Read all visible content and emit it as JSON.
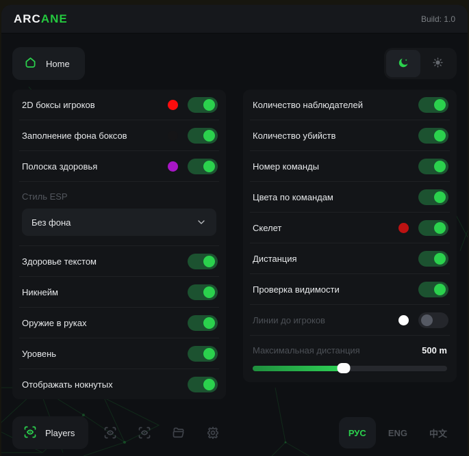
{
  "header": {
    "logo_white": "ARC",
    "logo_green": "ANE",
    "build": "Build: 1.0"
  },
  "nav": {
    "home_label": "Home"
  },
  "columns": {
    "left": [
      {
        "type": "toggle",
        "label": "2D боксы игроков",
        "color": "#fb0d0d",
        "on": true
      },
      {
        "type": "toggle",
        "label": "Заполнение фона боксов",
        "color": "#151517",
        "on": true
      },
      {
        "type": "toggle",
        "label": "Полоска здоровья",
        "color": "#a816c6",
        "on": true
      },
      {
        "type": "select",
        "label": "Стиль ESP",
        "value": "Без фона"
      },
      {
        "type": "toggle",
        "label": "Здоровье текстом",
        "on": true
      },
      {
        "type": "toggle",
        "label": "Никнейм",
        "on": true
      },
      {
        "type": "toggle",
        "label": "Оружие в руках",
        "on": true
      },
      {
        "type": "toggle",
        "label": "Уровень",
        "on": true
      },
      {
        "type": "toggle",
        "label": "Отображать нокнутых",
        "on": true
      }
    ],
    "right": [
      {
        "type": "toggle",
        "label": "Количество наблюдателей",
        "on": true
      },
      {
        "type": "toggle",
        "label": "Количество убийств",
        "on": true
      },
      {
        "type": "toggle",
        "label": "Номер команды",
        "on": true
      },
      {
        "type": "toggle",
        "label": "Цвета по командам",
        "on": true
      },
      {
        "type": "toggle",
        "label": "Скелет",
        "color": "#bd1212",
        "on": true
      },
      {
        "type": "toggle",
        "label": "Дистанция",
        "on": true
      },
      {
        "type": "toggle",
        "label": "Проверка видимости",
        "on": true
      },
      {
        "type": "toggle",
        "label": "Линии до игроков",
        "color": "#ffffff",
        "on": false,
        "disabled": true
      },
      {
        "type": "slider",
        "label": "Максимальная дистанция",
        "value": "500 m",
        "percent": 47,
        "disabled": true
      }
    ]
  },
  "footer": {
    "players_label": "Players",
    "tools": [
      {
        "icon": "scan-eye"
      },
      {
        "icon": "scan-eye"
      },
      {
        "icon": "folder"
      },
      {
        "icon": "gear"
      }
    ],
    "languages": [
      {
        "label": "РУС",
        "active": true
      },
      {
        "label": "ENG",
        "active": false
      },
      {
        "label": "中文",
        "active": false
      }
    ]
  },
  "colors": {
    "accent": "#2bd14d",
    "toggle_track_on": "#1c5230",
    "toggle_track_off": "#24262b",
    "icon_muted": "#3f434a"
  }
}
